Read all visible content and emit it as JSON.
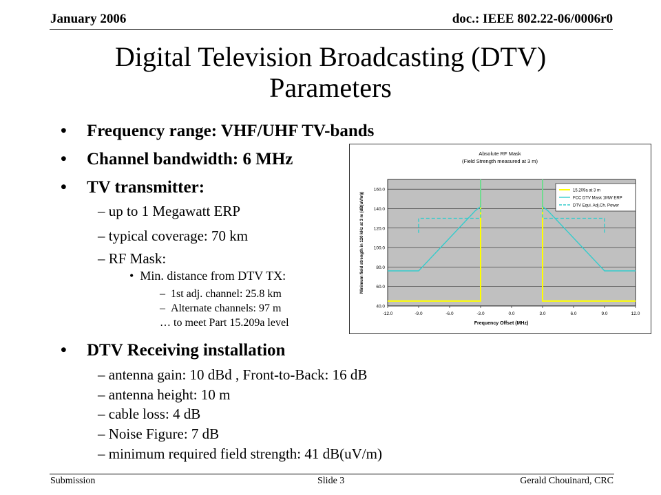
{
  "header": {
    "date": "January 2006",
    "doc": "doc.: IEEE 802.22-06/0006r0"
  },
  "title": {
    "line1": "Digital Television Broadcasting (DTV)",
    "line2": "Parameters"
  },
  "bullets": {
    "freq_range": "Frequency range: VHF/UHF TV-bands",
    "channel_bw": "Channel bandwidth: 6 MHz",
    "tv_tx": "TV transmitter:",
    "tv_tx_items": [
      "up to 1 Megawatt ERP",
      "typical coverage: 70 km",
      "RF Mask:"
    ],
    "rf_mask_sub": "Min. distance from DTV TX:",
    "rf_mask_subsub": [
      "1st adj. channel: 25.8 km",
      "Alternate channels: 97 m"
    ],
    "rf_mask_note": "… to meet Part 15.209a level",
    "rx": "DTV Receiving installation",
    "rx_items": [
      "antenna gain: 10 dBd , Front-to-Back: 16 dB",
      "antenna height: 10 m",
      "cable loss: 4 dB",
      "Noise Figure: 7 dB",
      "minimum required field strength: 41 dB(uV/m)"
    ]
  },
  "footer": {
    "left": "Submission",
    "center": "Slide 3",
    "right": "Gerald Chouinard, CRC"
  },
  "chart_data": {
    "type": "line",
    "title": "Absolute RF Mask",
    "subtitle": "(Field Strength measured at 3 m)",
    "xlabel": "Frequency Offset (MHz)",
    "ylabel": "Minimum field strength in 120 kHz at 3 m (dB(uV/m))",
    "xlim": [
      -12,
      12
    ],
    "ylim": [
      40,
      170
    ],
    "xticks": [
      "-12.0",
      "-9.0",
      "-6.0",
      "-3.0",
      "0.0",
      "3.0",
      "6.0",
      "9.0",
      "12.0"
    ],
    "yticks": [
      "40.0",
      "60.0",
      "80.0",
      "100.0",
      "120.0",
      "140.0",
      "160.0"
    ],
    "legend_position": "top-right",
    "series": [
      {
        "name": "15.209a at 3 m",
        "color": "#ffff00",
        "style": "solid",
        "x": [
          -12,
          -3,
          -3,
          -3,
          3,
          3,
          3,
          12
        ],
        "y": [
          45,
          45,
          170,
          null,
          null,
          170,
          45,
          45
        ]
      },
      {
        "name": "FCC DTV Mask 1MW ERP",
        "color": "#33cccc",
        "style": "solid",
        "x": [
          -12,
          -9,
          -3.5,
          -3,
          -3,
          -3,
          3,
          3,
          3,
          3.5,
          9,
          12
        ],
        "y": [
          76,
          76,
          138,
          142,
          170,
          null,
          null,
          170,
          142,
          138,
          76,
          76
        ]
      },
      {
        "name": "DTV Equi. Adj.Ch. Power",
        "color": "#33cccc",
        "style": "dashed",
        "x": [
          -9,
          -9,
          -3,
          -3,
          null,
          3,
          3,
          9,
          9
        ],
        "y": [
          115,
          130,
          130,
          140,
          null,
          140,
          130,
          130,
          115
        ]
      }
    ]
  }
}
